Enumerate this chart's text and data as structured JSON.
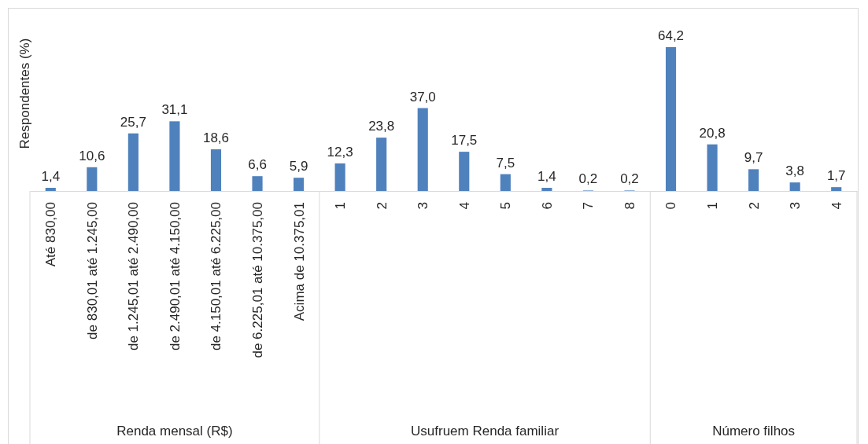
{
  "chart_data": [
    {
      "type": "bar",
      "ylabel": "Respondentes (%)",
      "xlabel": "Renda mensal (R$)",
      "categories": [
        "Até 830,00",
        "de 830,01 até 1.245,00",
        "de 1.245,01 até 2.490,00",
        "de 2.490,01 até 4.150,00",
        "de 4.150,01 até 6.225,00",
        "de 6.225,01 até 10.375,00",
        "Acima de 10.375,01"
      ],
      "values": [
        1.4,
        10.6,
        25.7,
        31.1,
        18.6,
        6.6,
        5.9
      ],
      "value_labels": [
        "1,4",
        "10,6",
        "25,7",
        "31,1",
        "18,6",
        "6,6",
        "5,9"
      ],
      "color": "#4f81bd",
      "tick_labels": "x"
    },
    {
      "type": "bar",
      "xlabel": "Usufruem Renda familiar",
      "categories": [
        "1",
        "2",
        "3",
        "4",
        "5",
        "6",
        "7",
        "8"
      ],
      "values": [
        12.3,
        23.8,
        37.0,
        17.5,
        7.5,
        1.4,
        0.2,
        0.2
      ],
      "value_labels": [
        "12,3",
        "23,8",
        "37,0",
        "17,5",
        "7,5",
        "1,4",
        "0,2",
        "0,2"
      ],
      "color": "#4f81bd",
      "tick_labels": "x"
    },
    {
      "type": "bar",
      "xlabel": "Número filhos",
      "categories": [
        "0",
        "1",
        "2",
        "3",
        "4"
      ],
      "values": [
        64.2,
        20.8,
        9.7,
        3.8,
        1.7
      ],
      "value_labels": [
        "64,2",
        "20,8",
        "9,7",
        "3,8",
        "1,7"
      ],
      "color": "#4f81bd",
      "tick_labels": "x"
    }
  ]
}
